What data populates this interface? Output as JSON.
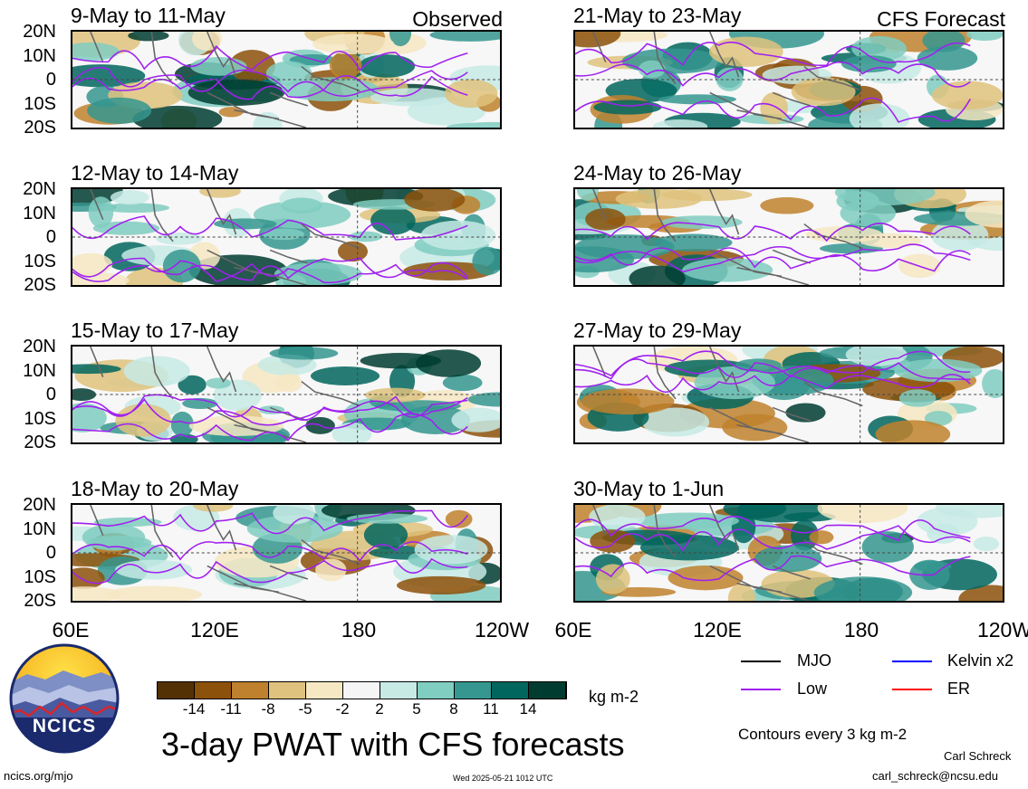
{
  "panels": [
    {
      "title": "9-May to 11-May",
      "corner": "Observed"
    },
    {
      "title": "21-May to 23-May",
      "corner": "CFS Forecast"
    },
    {
      "title": "12-May to 14-May",
      "corner": ""
    },
    {
      "title": "24-May to 26-May",
      "corner": ""
    },
    {
      "title": "15-May to 17-May",
      "corner": ""
    },
    {
      "title": "27-May to 29-May",
      "corner": ""
    },
    {
      "title": "18-May to 20-May",
      "corner": ""
    },
    {
      "title": "30-May to 1-Jun",
      "corner": ""
    }
  ],
  "lat_labels": [
    "20N",
    "10N",
    "0",
    "10S",
    "20S"
  ],
  "lon_labels": [
    "60E",
    "120E",
    "180",
    "120W"
  ],
  "colorbar": {
    "colors": [
      "#543005",
      "#8c510a",
      "#bf812d",
      "#dfc27d",
      "#f6e8c3",
      "#f5f5f5",
      "#c7eae5",
      "#80cdc1",
      "#35978f",
      "#01665e",
      "#003c30"
    ],
    "labels": [
      "-14",
      "-11",
      "-8",
      "-5",
      "-2",
      "2",
      "5",
      "8",
      "11",
      "14"
    ],
    "units": "kg m-2"
  },
  "legend": {
    "items": [
      {
        "label": "MJO",
        "color": "#000000"
      },
      {
        "label": "Kelvin x2",
        "color": "#0000ff"
      },
      {
        "label": "Low",
        "color": "#a020f0"
      },
      {
        "label": "ER",
        "color": "#ff0000"
      }
    ],
    "contour_note": "Contours every 3 kg m-2"
  },
  "title": "3-day PWAT with CFS forecasts",
  "logo_text": "NCICS",
  "footer": {
    "url": "ncics.org/mjo",
    "timestamp": "Wed 2025-05-21 1012 UTC",
    "author": "Carl Schreck",
    "email": "carl_schreck@ncsu.edu"
  }
}
